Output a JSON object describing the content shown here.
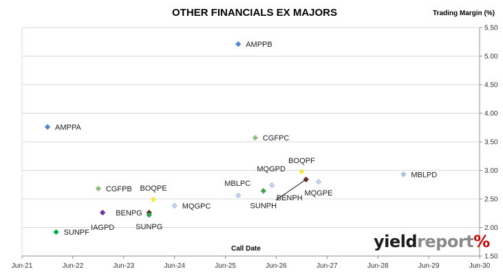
{
  "chart_data": {
    "type": "scatter",
    "title": "OTHER FINANCIALS EX MAJORS",
    "xlabel": "Call Date",
    "ylabel": "Trading Margin (%)",
    "x_axis": {
      "type": "date",
      "range": [
        "2021-06-01",
        "2030-06-01"
      ],
      "ticks": [
        "Jun-21",
        "Jun-22",
        "Jun-23",
        "Jun-24",
        "Jun-25",
        "Jun-26",
        "Jun-27",
        "Jun-28",
        "Jun-29",
        "Jun-30"
      ]
    },
    "y_axis": {
      "position": "right",
      "range": [
        1.5,
        5.5
      ],
      "ticks": [
        "1.50",
        "2.00",
        "2.50",
        "3.00",
        "3.50",
        "4.00",
        "4.50",
        "5.00",
        "5.50"
      ]
    },
    "grid": "horizontal",
    "points": [
      {
        "label": "AMPPB",
        "x": "2025-09-01",
        "y": 5.21,
        "color": "#4f86c6",
        "label_pos": "right"
      },
      {
        "label": "AMPPA",
        "x": "2021-12-01",
        "y": 3.76,
        "color": "#4f86c6",
        "label_pos": "right"
      },
      {
        "label": "CGFPC",
        "x": "2026-01-01",
        "y": 3.57,
        "color": "#8fbf7f",
        "label_pos": "right"
      },
      {
        "label": "BOQPF",
        "x": "2026-12-01",
        "y": 2.98,
        "color": "#f2e84a",
        "label_pos": "above"
      },
      {
        "label": "MBLPD",
        "x": "2028-12-01",
        "y": 2.93,
        "color": "#b4c6e7",
        "label_pos": "right"
      },
      {
        "label": "MQGPD",
        "x": "2026-05-01",
        "y": 2.74,
        "color": "#c9d6ee",
        "label_pos": "above"
      },
      {
        "label": "BENPH",
        "x": "2027-01-01",
        "y": 2.84,
        "color": "#5c2c2c",
        "label_pos": "below"
      },
      {
        "label": "MQGPE",
        "x": "2027-04-01",
        "y": 2.8,
        "color": "#c9d6ee",
        "label_pos": "below"
      },
      {
        "label": "SUNPH",
        "x": "2026-03-01",
        "y": 2.64,
        "color": "#3fa34d",
        "label_pos": "below"
      },
      {
        "label": "MBLPC",
        "x": "2025-09-01",
        "y": 2.56,
        "color": "#c9d6ee",
        "label_pos": "above"
      },
      {
        "label": "CGFPB",
        "x": "2022-12-01",
        "y": 2.68,
        "color": "#8fbf7f",
        "label_pos": "right"
      },
      {
        "label": "BOQPE",
        "x": "2024-01-01",
        "y": 2.49,
        "color": "#f2e84a",
        "label_pos": "above"
      },
      {
        "label": "MQGPC",
        "x": "2024-06-01",
        "y": 2.38,
        "color": "#c9d6ee",
        "label_pos": "right"
      },
      {
        "label": "IAGPD",
        "x": "2023-01-01",
        "y": 2.26,
        "color": "#7030a0",
        "label_pos": "below"
      },
      {
        "label": "BENPG",
        "x": "2023-12-01",
        "y": 2.26,
        "color": "#5c2c2c",
        "label_pos": "left"
      },
      {
        "label": "SUNPG",
        "x": "2023-12-01",
        "y": 2.22,
        "color": "#2e9e4f",
        "label_pos": "below"
      },
      {
        "label": "SUNPF",
        "x": "2022-02-01",
        "y": 1.92,
        "color": "#00b050",
        "label_pos": "right"
      }
    ],
    "connectors": [
      {
        "from": "BENPH",
        "to": "MQGPD"
      }
    ]
  },
  "brand": {
    "part1": "yield",
    "part2": "report",
    "part3": "%"
  }
}
